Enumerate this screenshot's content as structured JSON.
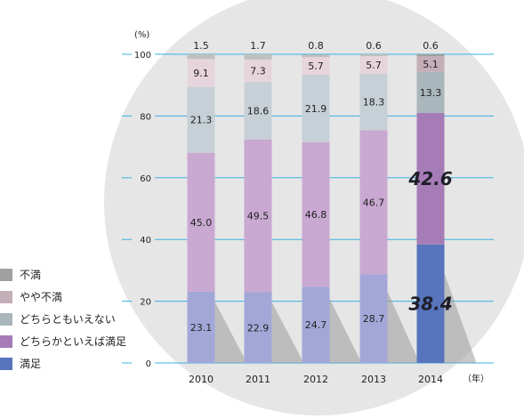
{
  "chart_data": {
    "type": "bar",
    "stacked": true,
    "categories": [
      "2010",
      "2011",
      "2012",
      "2013",
      "2014"
    ],
    "unit_label": "(%)",
    "x_unit_label": "（年）",
    "y_ticks": [
      "0",
      "20",
      "40",
      "60",
      "80",
      "100"
    ],
    "ylim": [
      0,
      100
    ],
    "grid": true,
    "legend_position": "left",
    "series": [
      {
        "name": "満足",
        "values": [
          23.1,
          22.9,
          24.7,
          28.7,
          38.4
        ],
        "labels": [
          "23.1",
          "22.9",
          "24.7",
          "28.7",
          "38.4"
        ],
        "color": "#a3a7d8",
        "highlight_color": "#5774bc"
      },
      {
        "name": "どちらかといえば満足",
        "values": [
          45.0,
          49.5,
          46.8,
          46.7,
          42.6
        ],
        "labels": [
          "45.0",
          "49.5",
          "46.8",
          "46.7",
          "42.6"
        ],
        "color": "#c9a8d2",
        "highlight_color": "#a67cb6"
      },
      {
        "name": "どちらともいえない",
        "values": [
          21.3,
          18.6,
          21.9,
          18.3,
          13.3
        ],
        "labels": [
          "21.3",
          "18.6",
          "21.9",
          "18.3",
          "13.3"
        ],
        "color": "#c6d0d6",
        "highlight_color": "#a9b6bc"
      },
      {
        "name": "やや不満",
        "values": [
          9.1,
          7.3,
          5.7,
          5.7,
          5.1
        ],
        "labels": [
          "9.1",
          "7.3",
          "5.7",
          "5.7",
          "5.1"
        ],
        "color": "#e6d5dc",
        "highlight_color": "#c4aeb8"
      },
      {
        "name": "不満",
        "values": [
          1.5,
          1.7,
          0.8,
          0.6,
          0.6
        ],
        "labels": [
          "1.5",
          "1.7",
          "0.8",
          "0.6",
          "0.6"
        ],
        "color": "#c0c0c0",
        "highlight_color": "#a0a0a0"
      }
    ],
    "highlight_category": "2014",
    "legend_order": [
      "不満",
      "やや不満",
      "どちらともいえない",
      "どちらかといえば満足",
      "満足"
    ],
    "colors": {
      "grid": "#3bb0e2",
      "background_circle": "#e6e6e6"
    }
  }
}
